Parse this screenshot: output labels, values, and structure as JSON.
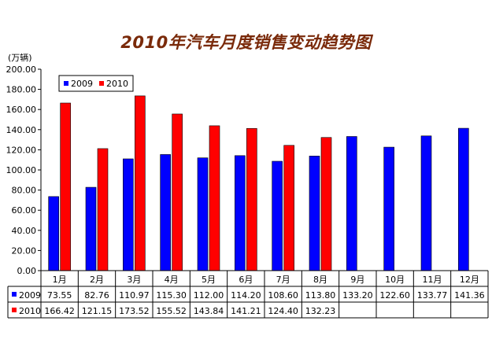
{
  "chart_data": {
    "type": "bar",
    "title": "2010年汽车月度销售变动趋势图",
    "unit_label": "(万辆)",
    "ylim": [
      0,
      200
    ],
    "yticks": [
      "0.00",
      "20.00",
      "40.00",
      "60.00",
      "80.00",
      "100.00",
      "120.00",
      "140.00",
      "160.00",
      "180.00",
      "200.00"
    ],
    "categories": [
      "1月",
      "2月",
      "3月",
      "4月",
      "5月",
      "6月",
      "7月",
      "8月",
      "9月",
      "10月",
      "11月",
      "12月"
    ],
    "series": [
      {
        "name": "2009",
        "color": "#0000ff",
        "values": [
          73.55,
          82.76,
          110.97,
          115.3,
          112.0,
          114.2,
          108.6,
          113.8,
          133.2,
          122.6,
          133.77,
          141.36
        ],
        "labels": [
          "73.55",
          "82.76",
          "110.97",
          "115.30",
          "112.00",
          "114.20",
          "108.60",
          "113.80",
          "133.20",
          "122.60",
          "133.77",
          "141.36"
        ]
      },
      {
        "name": "2010",
        "color": "#ff0000",
        "values": [
          166.42,
          121.15,
          173.52,
          155.52,
          143.84,
          141.21,
          124.4,
          132.23,
          null,
          null,
          null,
          null
        ],
        "labels": [
          "166.42",
          "121.15",
          "173.52",
          "155.52",
          "143.84",
          "141.21",
          "124.40",
          "132.23",
          "",
          "",
          "",
          ""
        ]
      }
    ],
    "legend_position": "top-left",
    "grid": false,
    "data_table": true
  }
}
